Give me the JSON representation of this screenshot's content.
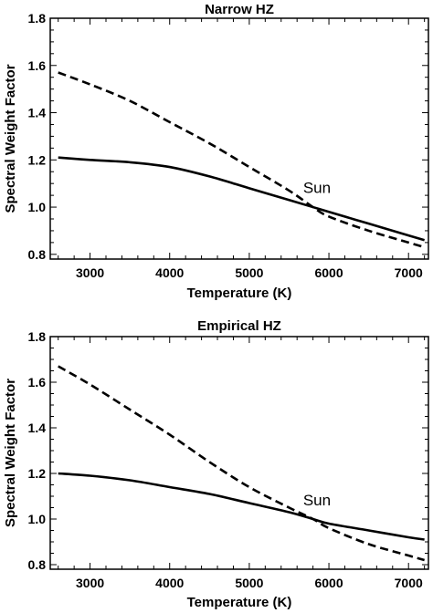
{
  "chart_data": [
    {
      "type": "line",
      "title": "Narrow HZ",
      "xlabel": "Temperature (K)",
      "ylabel": "Spectral Weight Factor",
      "xlim": [
        2500,
        7250
      ],
      "ylim": [
        0.78,
        1.8
      ],
      "xticks": [
        3000,
        4000,
        5000,
        6000,
        7000
      ],
      "yticks": [
        0.8,
        1.0,
        1.2,
        1.4,
        1.6,
        1.8
      ],
      "xtick_labels": [
        "3000",
        "4000",
        "5000",
        "6000",
        "7000"
      ],
      "ytick_labels": [
        "0.8",
        "1.0",
        "1.2",
        "1.4",
        "1.6",
        "1.8"
      ],
      "grid": false,
      "annotations": [
        {
          "text": "Sun",
          "x": 5850,
          "y": 1.06
        }
      ],
      "series": [
        {
          "style": "solid",
          "x": [
            2600,
            3000,
            3500,
            4000,
            4500,
            5000,
            5500,
            5800,
            6000,
            6500,
            7000,
            7200
          ],
          "y": [
            1.21,
            1.2,
            1.19,
            1.17,
            1.13,
            1.08,
            1.03,
            1.0,
            0.98,
            0.93,
            0.88,
            0.86
          ]
        },
        {
          "style": "dashed",
          "x": [
            2600,
            3000,
            3500,
            4000,
            4500,
            5000,
            5500,
            5800,
            6000,
            6500,
            7000,
            7200
          ],
          "y": [
            1.57,
            1.52,
            1.45,
            1.36,
            1.27,
            1.17,
            1.07,
            1.0,
            0.96,
            0.9,
            0.85,
            0.83
          ]
        }
      ]
    },
    {
      "type": "line",
      "title": "Empirical HZ",
      "xlabel": "Temperature (K)",
      "ylabel": "Spectral Weight Factor",
      "xlim": [
        2500,
        7250
      ],
      "ylim": [
        0.78,
        1.8
      ],
      "xticks": [
        3000,
        4000,
        5000,
        6000,
        7000
      ],
      "yticks": [
        0.8,
        1.0,
        1.2,
        1.4,
        1.6,
        1.8
      ],
      "xtick_labels": [
        "3000",
        "4000",
        "5000",
        "6000",
        "7000"
      ],
      "ytick_labels": [
        "0.8",
        "1.0",
        "1.2",
        "1.4",
        "1.6",
        "1.8"
      ],
      "grid": false,
      "annotations": [
        {
          "text": "Sun",
          "x": 5850,
          "y": 1.06
        }
      ],
      "series": [
        {
          "style": "solid",
          "x": [
            2600,
            3000,
            3500,
            4000,
            4500,
            5000,
            5500,
            5800,
            6000,
            6500,
            7000,
            7200
          ],
          "y": [
            1.2,
            1.19,
            1.17,
            1.14,
            1.11,
            1.07,
            1.03,
            1.0,
            0.98,
            0.95,
            0.92,
            0.91
          ]
        },
        {
          "style": "dashed",
          "x": [
            2600,
            3000,
            3500,
            4000,
            4500,
            5000,
            5500,
            5800,
            6000,
            6500,
            7000,
            7200
          ],
          "y": [
            1.67,
            1.59,
            1.48,
            1.37,
            1.25,
            1.14,
            1.05,
            1.0,
            0.96,
            0.89,
            0.84,
            0.82
          ]
        }
      ]
    }
  ]
}
